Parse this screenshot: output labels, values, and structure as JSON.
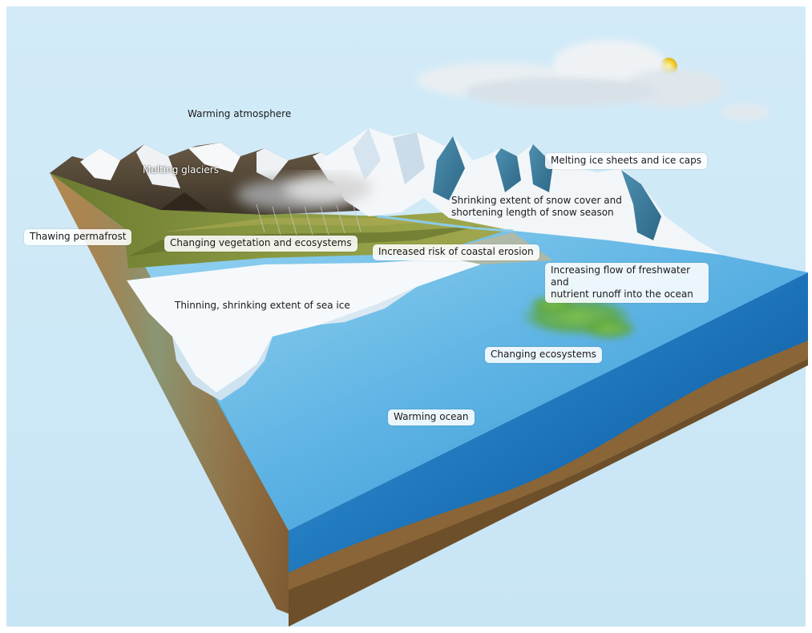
{
  "colors": {
    "sky": "#cfe8f6",
    "ocean_top": "#6fc2ec",
    "ocean_side": "#1c73b8",
    "soil": "#a67c47",
    "sea_ice": "#f4f8fb",
    "vegetation": "#7a8a3a"
  },
  "labels": {
    "warming_atmosphere": "Warming atmosphere",
    "melting_glaciers": "Melting glaciers",
    "melting_ice_sheets": "Melting ice sheets and ice caps",
    "snow_cover_line1": "Shrinking extent of snow cover and",
    "snow_cover_line2": "shortening length of snow season",
    "thawing_permafrost": "Thawing permafrost",
    "changing_vegetation": "Changing vegetation and ecosystems",
    "coastal_erosion": "Increased risk of coastal erosion",
    "freshwater_line1": "Increasing flow of freshwater and",
    "freshwater_line2": "nutrient runoff into the ocean",
    "sea_ice": "Thinning, shrinking extent of sea ice",
    "changing_ecosystems": "Changing ecosystems",
    "warming_ocean": "Warming ocean"
  },
  "icons": [
    "sun-icon",
    "cloud-icon",
    "rain-cloud-icon"
  ]
}
